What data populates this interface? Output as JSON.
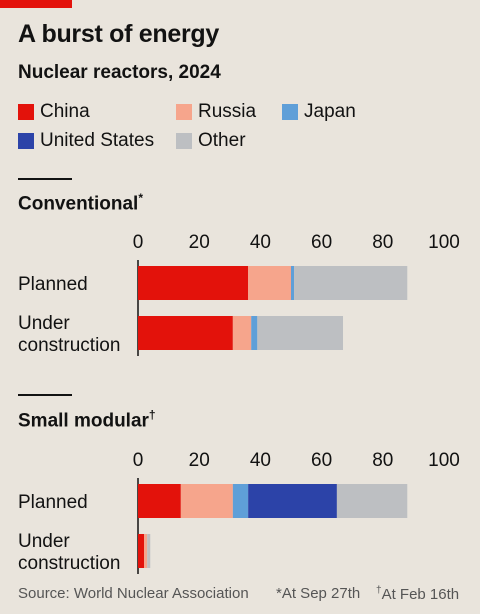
{
  "header": {
    "title": "A burst of energy",
    "subtitle": "Nuclear reactors, 2024"
  },
  "legend": [
    {
      "label": "China",
      "color": "#e3120b"
    },
    {
      "label": "Russia",
      "color": "#f6a58c"
    },
    {
      "label": "Japan",
      "color": "#5f9fd8"
    },
    {
      "label": "United States",
      "color": "#2c43a8"
    },
    {
      "label": "Other",
      "color": "#bdbfc2"
    }
  ],
  "footer": {
    "source": "Source: World Nuclear Association",
    "note1_mark": "*",
    "note1_text": "At Sep 27th",
    "note2_mark": "†",
    "note2_text": "At Feb 16th"
  },
  "chart_data": [
    {
      "type": "bar",
      "orientation": "horizontal",
      "stacked": true,
      "title": "Conventional",
      "title_mark": "*",
      "categories": [
        "Planned",
        "Under construction"
      ],
      "category_lines": [
        [
          "Planned"
        ],
        [
          "Under",
          "construction"
        ]
      ],
      "series": [
        {
          "name": "China",
          "values": [
            36,
            31
          ]
        },
        {
          "name": "Russia",
          "values": [
            14,
            6
          ]
        },
        {
          "name": "Japan",
          "values": [
            1,
            2
          ]
        },
        {
          "name": "United States",
          "values": [
            0,
            0
          ]
        },
        {
          "name": "Other",
          "values": [
            37,
            28
          ]
        }
      ],
      "xlim": [
        0,
        100
      ],
      "xticks": [
        0,
        20,
        40,
        60,
        80,
        100
      ],
      "xaxis_position": "top",
      "grid": false
    },
    {
      "type": "bar",
      "orientation": "horizontal",
      "stacked": true,
      "title": "Small modular",
      "title_mark": "†",
      "categories": [
        "Planned",
        "Under construction"
      ],
      "category_lines": [
        [
          "Planned"
        ],
        [
          "Under",
          "construction"
        ]
      ],
      "series": [
        {
          "name": "China",
          "values": [
            14,
            2
          ]
        },
        {
          "name": "Russia",
          "values": [
            17,
            1
          ]
        },
        {
          "name": "Japan",
          "values": [
            5,
            0
          ]
        },
        {
          "name": "United States",
          "values": [
            29,
            0
          ]
        },
        {
          "name": "Other",
          "values": [
            23,
            1
          ]
        }
      ],
      "xlim": [
        0,
        100
      ],
      "xticks": [
        0,
        20,
        40,
        60,
        80,
        100
      ],
      "xaxis_position": "top",
      "grid": false
    }
  ]
}
